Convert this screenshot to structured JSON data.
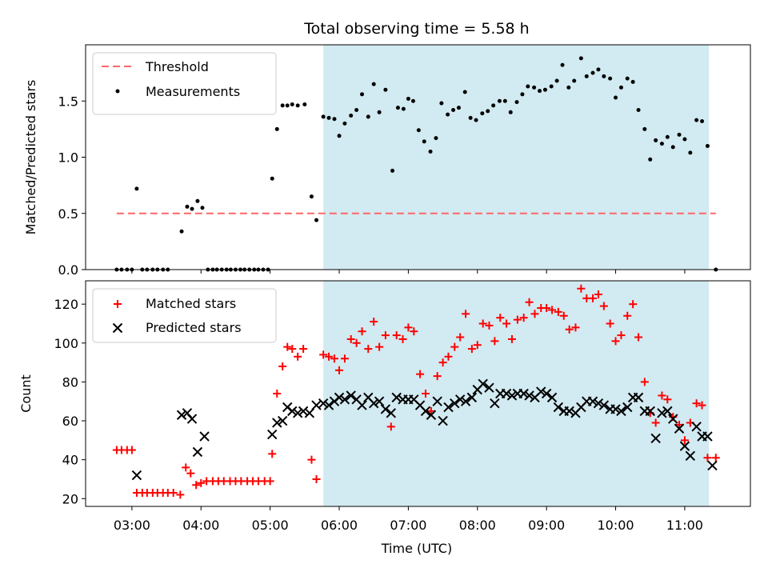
{
  "chart_data": {
    "type": "scatter",
    "title": "Total observing time = 5.58 h",
    "xlabel": "Time (UTC)",
    "x_tick_labels": [
      "03:00",
      "04:00",
      "05:00",
      "06:00",
      "07:00",
      "08:00",
      "09:00",
      "10:00",
      "11:00"
    ],
    "x_tick_hours": [
      3,
      4,
      5,
      6,
      7,
      8,
      9,
      10,
      11
    ],
    "xlim_hours": [
      2.33,
      11.95
    ],
    "shaded_interval_hours": [
      5.77,
      11.35
    ],
    "colors": {
      "shade": "#add8e6",
      "threshold": "#ff6666",
      "matched": "#ff0000",
      "predicted": "#000000",
      "measurement": "#000000"
    },
    "top": {
      "ylabel": "Matched/Predicted stars",
      "ylim": [
        0,
        2.0
      ],
      "y_ticks": [
        0,
        0.5,
        1.0,
        1.5
      ],
      "y_tick_labels": [
        "0.0",
        "0.5",
        "1.0",
        "1.5"
      ],
      "threshold": {
        "label": "Threshold",
        "value": 0.5,
        "x_range_hours": [
          2.78,
          11.45
        ]
      },
      "measurements_label": "Measurements",
      "measurements": [
        [
          2.78,
          0
        ],
        [
          2.85,
          0
        ],
        [
          2.93,
          0
        ],
        [
          3.0,
          0
        ],
        [
          3.07,
          0.72
        ],
        [
          3.15,
          0
        ],
        [
          3.22,
          0
        ],
        [
          3.3,
          0
        ],
        [
          3.37,
          0
        ],
        [
          3.45,
          0
        ],
        [
          3.52,
          0
        ],
        [
          3.72,
          0.34
        ],
        [
          3.8,
          0.56
        ],
        [
          3.87,
          0.54
        ],
        [
          3.95,
          0.61
        ],
        [
          4.02,
          0.55
        ],
        [
          4.1,
          0
        ],
        [
          4.17,
          0
        ],
        [
          4.23,
          0
        ],
        [
          4.3,
          0
        ],
        [
          4.37,
          0
        ],
        [
          4.43,
          0
        ],
        [
          4.5,
          0
        ],
        [
          4.57,
          0
        ],
        [
          4.63,
          0
        ],
        [
          4.7,
          0
        ],
        [
          4.77,
          0
        ],
        [
          4.83,
          0
        ],
        [
          4.9,
          0
        ],
        [
          4.97,
          0
        ],
        [
          5.03,
          0.81
        ],
        [
          5.1,
          1.25
        ],
        [
          5.18,
          1.46
        ],
        [
          5.25,
          1.46
        ],
        [
          5.32,
          1.47
        ],
        [
          5.4,
          1.46
        ],
        [
          5.5,
          1.47
        ],
        [
          5.6,
          0.65
        ],
        [
          5.67,
          0.44
        ],
        [
          5.77,
          1.36
        ],
        [
          5.85,
          1.35
        ],
        [
          5.93,
          1.34
        ],
        [
          6.0,
          1.19
        ],
        [
          6.08,
          1.3
        ],
        [
          6.17,
          1.37
        ],
        [
          6.25,
          1.42
        ],
        [
          6.33,
          1.56
        ],
        [
          6.42,
          1.36
        ],
        [
          6.5,
          1.65
        ],
        [
          6.58,
          1.4
        ],
        [
          6.67,
          1.6
        ],
        [
          6.77,
          0.88
        ],
        [
          6.85,
          1.44
        ],
        [
          6.93,
          1.43
        ],
        [
          7.0,
          1.52
        ],
        [
          7.07,
          1.5
        ],
        [
          7.15,
          1.24
        ],
        [
          7.23,
          1.14
        ],
        [
          7.32,
          1.05
        ],
        [
          7.4,
          1.17
        ],
        [
          7.48,
          1.48
        ],
        [
          7.57,
          1.38
        ],
        [
          7.65,
          1.42
        ],
        [
          7.73,
          1.44
        ],
        [
          7.82,
          1.58
        ],
        [
          7.9,
          1.35
        ],
        [
          7.98,
          1.33
        ],
        [
          8.07,
          1.39
        ],
        [
          8.15,
          1.41
        ],
        [
          8.23,
          1.46
        ],
        [
          8.32,
          1.5
        ],
        [
          8.4,
          1.5
        ],
        [
          8.48,
          1.4
        ],
        [
          8.57,
          1.49
        ],
        [
          8.65,
          1.56
        ],
        [
          8.73,
          1.63
        ],
        [
          8.82,
          1.62
        ],
        [
          8.9,
          1.59
        ],
        [
          8.98,
          1.6
        ],
        [
          9.07,
          1.63
        ],
        [
          9.15,
          1.68
        ],
        [
          9.23,
          1.82
        ],
        [
          9.32,
          1.62
        ],
        [
          9.4,
          1.68
        ],
        [
          9.5,
          1.88
        ],
        [
          9.58,
          1.72
        ],
        [
          9.67,
          1.75
        ],
        [
          9.75,
          1.78
        ],
        [
          9.83,
          1.72
        ],
        [
          9.92,
          1.7
        ],
        [
          10.0,
          1.53
        ],
        [
          10.08,
          1.62
        ],
        [
          10.17,
          1.7
        ],
        [
          10.25,
          1.67
        ],
        [
          10.33,
          1.42
        ],
        [
          10.42,
          1.25
        ],
        [
          10.5,
          0.98
        ],
        [
          10.58,
          1.15
        ],
        [
          10.67,
          1.12
        ],
        [
          10.75,
          1.18
        ],
        [
          10.83,
          1.09
        ],
        [
          10.92,
          1.2
        ],
        [
          11.0,
          1.16
        ],
        [
          11.08,
          1.04
        ],
        [
          11.17,
          1.33
        ],
        [
          11.25,
          1.32
        ],
        [
          11.33,
          1.1
        ],
        [
          11.45,
          0
        ]
      ]
    },
    "bottom": {
      "ylabel": "Count",
      "ylim": [
        16,
        132
      ],
      "y_ticks": [
        20,
        40,
        60,
        80,
        100,
        120
      ],
      "y_tick_labels": [
        "20",
        "40",
        "60",
        "80",
        "100",
        "120"
      ],
      "series": [
        {
          "name": "Matched stars",
          "marker": "+",
          "points": [
            [
              2.78,
              45
            ],
            [
              2.85,
              45
            ],
            [
              2.93,
              45
            ],
            [
              3.0,
              45
            ],
            [
              3.07,
              23
            ],
            [
              3.15,
              23
            ],
            [
              3.22,
              23
            ],
            [
              3.3,
              23
            ],
            [
              3.37,
              23
            ],
            [
              3.45,
              23
            ],
            [
              3.52,
              23
            ],
            [
              3.6,
              23
            ],
            [
              3.7,
              22
            ],
            [
              3.78,
              36
            ],
            [
              3.85,
              33
            ],
            [
              3.93,
              27
            ],
            [
              4.0,
              28
            ],
            [
              4.08,
              29
            ],
            [
              4.17,
              29
            ],
            [
              4.25,
              29
            ],
            [
              4.33,
              29
            ],
            [
              4.42,
              29
            ],
            [
              4.5,
              29
            ],
            [
              4.58,
              29
            ],
            [
              4.67,
              29
            ],
            [
              4.75,
              29
            ],
            [
              4.83,
              29
            ],
            [
              4.92,
              29
            ],
            [
              5.0,
              29
            ],
            [
              5.03,
              43
            ],
            [
              5.1,
              74
            ],
            [
              5.18,
              88
            ],
            [
              5.25,
              98
            ],
            [
              5.32,
              97
            ],
            [
              5.4,
              93
            ],
            [
              5.48,
              97
            ],
            [
              5.6,
              40
            ],
            [
              5.67,
              30
            ],
            [
              5.77,
              94
            ],
            [
              5.85,
              93
            ],
            [
              5.93,
              92
            ],
            [
              6.0,
              86
            ],
            [
              6.08,
              92
            ],
            [
              6.17,
              102
            ],
            [
              6.25,
              100
            ],
            [
              6.33,
              106
            ],
            [
              6.42,
              97
            ],
            [
              6.5,
              111
            ],
            [
              6.58,
              98
            ],
            [
              6.67,
              104
            ],
            [
              6.75,
              57
            ],
            [
              6.83,
              104
            ],
            [
              6.92,
              102
            ],
            [
              7.0,
              108
            ],
            [
              7.08,
              106
            ],
            [
              7.17,
              84
            ],
            [
              7.25,
              74
            ],
            [
              7.33,
              65
            ],
            [
              7.42,
              83
            ],
            [
              7.5,
              90
            ],
            [
              7.58,
              93
            ],
            [
              7.67,
              98
            ],
            [
              7.75,
              103
            ],
            [
              7.83,
              115
            ],
            [
              7.92,
              97
            ],
            [
              8.0,
              99
            ],
            [
              8.08,
              110
            ],
            [
              8.17,
              109
            ],
            [
              8.25,
              101
            ],
            [
              8.33,
              113
            ],
            [
              8.42,
              110
            ],
            [
              8.5,
              102
            ],
            [
              8.58,
              112
            ],
            [
              8.67,
              113
            ],
            [
              8.75,
              121
            ],
            [
              8.83,
              115
            ],
            [
              8.92,
              118
            ],
            [
              9.0,
              118
            ],
            [
              9.08,
              117
            ],
            [
              9.17,
              116
            ],
            [
              9.25,
              114
            ],
            [
              9.33,
              107
            ],
            [
              9.42,
              108
            ],
            [
              9.5,
              128
            ],
            [
              9.58,
              123
            ],
            [
              9.67,
              123
            ],
            [
              9.75,
              125
            ],
            [
              9.83,
              119
            ],
            [
              9.92,
              110
            ],
            [
              10.0,
              101
            ],
            [
              10.08,
              104
            ],
            [
              10.17,
              114
            ],
            [
              10.25,
              120
            ],
            [
              10.33,
              103
            ],
            [
              10.42,
              80
            ],
            [
              10.5,
              64
            ],
            [
              10.58,
              59
            ],
            [
              10.67,
              73
            ],
            [
              10.75,
              71
            ],
            [
              10.83,
              62
            ],
            [
              10.92,
              58
            ],
            [
              11.0,
              50
            ],
            [
              11.08,
              59
            ],
            [
              11.17,
              69
            ],
            [
              11.25,
              68
            ],
            [
              11.33,
              41
            ],
            [
              11.45,
              41
            ]
          ]
        },
        {
          "name": "Predicted stars",
          "marker": "x",
          "points": [
            [
              3.07,
              32
            ],
            [
              3.72,
              63
            ],
            [
              3.8,
              64
            ],
            [
              3.87,
              61
            ],
            [
              3.95,
              44
            ],
            [
              4.05,
              52
            ],
            [
              5.03,
              53
            ],
            [
              5.1,
              59
            ],
            [
              5.18,
              60
            ],
            [
              5.25,
              67
            ],
            [
              5.32,
              65
            ],
            [
              5.4,
              64
            ],
            [
              5.48,
              65
            ],
            [
              5.57,
              64
            ],
            [
              5.67,
              68
            ],
            [
              5.77,
              69
            ],
            [
              5.85,
              68
            ],
            [
              5.93,
              70
            ],
            [
              6.0,
              72
            ],
            [
              6.08,
              71
            ],
            [
              6.17,
              73
            ],
            [
              6.25,
              71
            ],
            [
              6.33,
              68
            ],
            [
              6.42,
              72
            ],
            [
              6.5,
              69
            ],
            [
              6.58,
              70
            ],
            [
              6.67,
              66
            ],
            [
              6.75,
              64
            ],
            [
              6.83,
              72
            ],
            [
              6.92,
              71
            ],
            [
              7.0,
              71
            ],
            [
              7.08,
              71
            ],
            [
              7.17,
              68
            ],
            [
              7.25,
              65
            ],
            [
              7.33,
              63
            ],
            [
              7.42,
              70
            ],
            [
              7.5,
              60
            ],
            [
              7.58,
              67
            ],
            [
              7.67,
              69
            ],
            [
              7.75,
              71
            ],
            [
              7.83,
              70
            ],
            [
              7.92,
              72
            ],
            [
              8.0,
              76
            ],
            [
              8.08,
              79
            ],
            [
              8.17,
              77
            ],
            [
              8.25,
              69
            ],
            [
              8.33,
              74
            ],
            [
              8.42,
              74
            ],
            [
              8.5,
              73
            ],
            [
              8.58,
              74
            ],
            [
              8.67,
              74
            ],
            [
              8.75,
              73
            ],
            [
              8.83,
              72
            ],
            [
              8.92,
              75
            ],
            [
              9.0,
              74
            ],
            [
              9.08,
              72
            ],
            [
              9.17,
              67
            ],
            [
              9.25,
              65
            ],
            [
              9.33,
              65
            ],
            [
              9.42,
              64
            ],
            [
              9.5,
              67
            ],
            [
              9.58,
              70
            ],
            [
              9.67,
              70
            ],
            [
              9.75,
              69
            ],
            [
              9.83,
              68
            ],
            [
              9.92,
              66
            ],
            [
              10.0,
              66
            ],
            [
              10.08,
              65
            ],
            [
              10.17,
              67
            ],
            [
              10.25,
              72
            ],
            [
              10.33,
              72
            ],
            [
              10.42,
              65
            ],
            [
              10.5,
              65
            ],
            [
              10.58,
              51
            ],
            [
              10.67,
              64
            ],
            [
              10.75,
              65
            ],
            [
              10.83,
              61
            ],
            [
              10.92,
              56
            ],
            [
              11.0,
              47
            ],
            [
              11.08,
              42
            ],
            [
              11.17,
              57
            ],
            [
              11.25,
              52
            ],
            [
              11.33,
              52
            ],
            [
              11.4,
              37
            ]
          ]
        }
      ]
    }
  }
}
